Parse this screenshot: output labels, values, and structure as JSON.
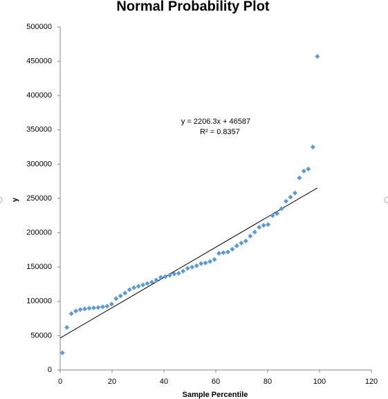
{
  "chart_data": {
    "type": "scatter",
    "title": "Normal Probability Plot",
    "x_label": "Sample Percentile",
    "y_label": "y",
    "x": [
      0.86,
      2.59,
      4.31,
      6.03,
      7.76,
      9.48,
      11.21,
      12.93,
      14.66,
      16.38,
      18.1,
      19.83,
      21.55,
      23.28,
      25.0,
      26.72,
      28.45,
      30.17,
      31.9,
      33.62,
      35.34,
      37.07,
      38.79,
      40.52,
      42.24,
      43.97,
      45.69,
      47.41,
      49.14,
      50.86,
      52.59,
      54.31,
      56.03,
      57.76,
      59.48,
      61.21,
      62.93,
      64.66,
      66.38,
      68.1,
      69.83,
      71.55,
      73.28,
      75.0,
      76.72,
      78.45,
      80.17,
      81.9,
      83.62,
      85.34,
      87.07,
      88.79,
      90.52,
      92.24,
      93.97,
      95.69,
      97.41,
      99.14
    ],
    "values": [
      25000,
      62000,
      82000,
      86000,
      88000,
      89000,
      90000,
      90500,
      91000,
      92000,
      93000,
      96000,
      104000,
      108000,
      112000,
      117000,
      120000,
      122000,
      124000,
      126000,
      128000,
      131000,
      135000,
      136000,
      138000,
      140000,
      141000,
      144000,
      148000,
      150000,
      152000,
      155000,
      156000,
      158000,
      161000,
      170000,
      171000,
      172000,
      176000,
      181000,
      185000,
      188000,
      195000,
      201000,
      208000,
      211000,
      212000,
      225000,
      228000,
      235000,
      246000,
      252000,
      258000,
      280000,
      290000,
      293000,
      325000,
      457000
    ],
    "color": "#5b9bd5",
    "trendline": {
      "slope": 2206.3,
      "intercept": 46587,
      "equation": "y = 2206.3x + 46587",
      "r2_label": "R² = 0.8357",
      "color": "#000000"
    },
    "xlim": [
      0,
      120
    ],
    "xticks": [
      0,
      20,
      40,
      60,
      80,
      100,
      120
    ],
    "ylim": [
      0,
      500000
    ],
    "yticks": [
      0,
      50000,
      100000,
      150000,
      200000,
      250000,
      300000,
      350000,
      400000,
      450000,
      500000
    ]
  }
}
